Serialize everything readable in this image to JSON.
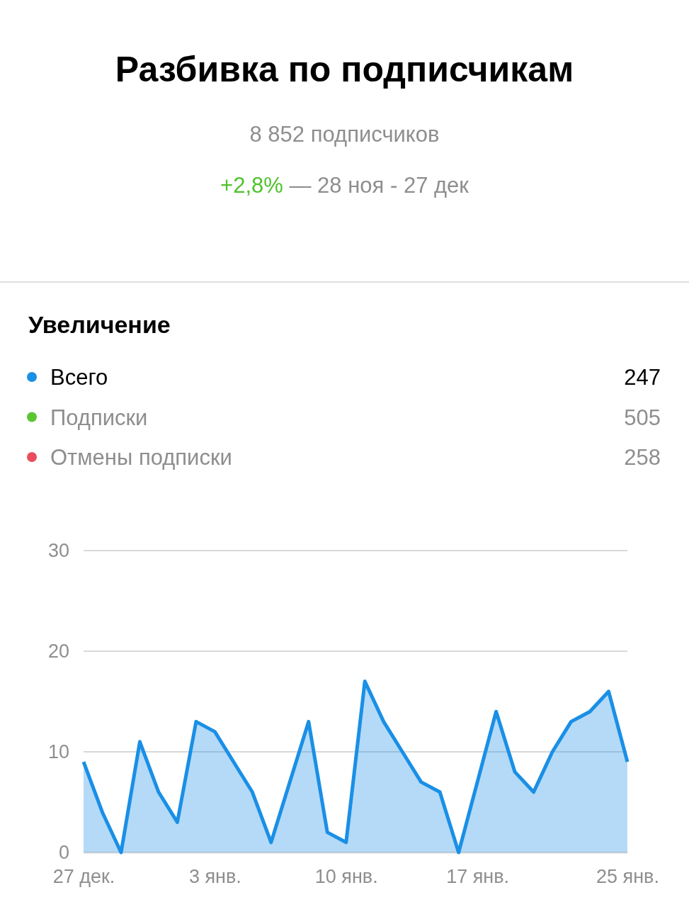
{
  "chart_data": {
    "type": "area",
    "title": "Разбивка по подписчикам",
    "subtitle": "8 852 подписчиков",
    "legend_title": "Увеличение",
    "legend": "top",
    "annotations": [
      "+2,8%",
      "— 28 ноя - 27 дек",
      "247",
      "505",
      "258"
    ],
    "categories": [
      "27 дек.",
      null,
      null,
      null,
      null,
      null,
      null,
      "3 янв.",
      null,
      null,
      null,
      null,
      null,
      null,
      "10 янв.",
      null,
      null,
      null,
      null,
      null,
      null,
      "17 янв.",
      null,
      null,
      null,
      null,
      null,
      null,
      null,
      "25 янв."
    ],
    "series": [
      {
        "name": "Всего",
        "color": "#1a8fe6",
        "values": [
          9,
          4,
          0,
          11,
          6,
          3,
          13,
          12,
          9,
          6,
          1,
          7,
          13,
          2,
          1,
          17,
          13,
          10,
          7,
          6,
          0,
          7,
          14,
          8,
          6,
          10,
          13,
          14,
          16,
          9
        ]
      },
      {
        "name": "Подписки",
        "color": "#5cc531",
        "values": [
          null,
          null,
          null,
          null,
          null,
          null,
          null,
          null,
          null,
          null,
          null,
          null,
          null,
          null,
          null,
          null,
          null,
          null,
          null,
          null,
          null,
          null,
          null,
          null,
          null,
          null,
          null,
          null,
          null,
          null
        ]
      },
      {
        "name": "Отмены подписки",
        "color": "#eb4d5c",
        "values": [
          null,
          null,
          null,
          null,
          null,
          null,
          null,
          null,
          null,
          null,
          null,
          null,
          null,
          null,
          null,
          null,
          null,
          null,
          null,
          null,
          null,
          null,
          null,
          null,
          null,
          null,
          null,
          null,
          null,
          null
        ]
      }
    ],
    "ylim": [
      0,
      30
    ],
    "yticks": [
      0,
      10,
      20,
      30
    ],
    "grid": "y",
    "marker": "none",
    "line_style": "solid"
  }
}
